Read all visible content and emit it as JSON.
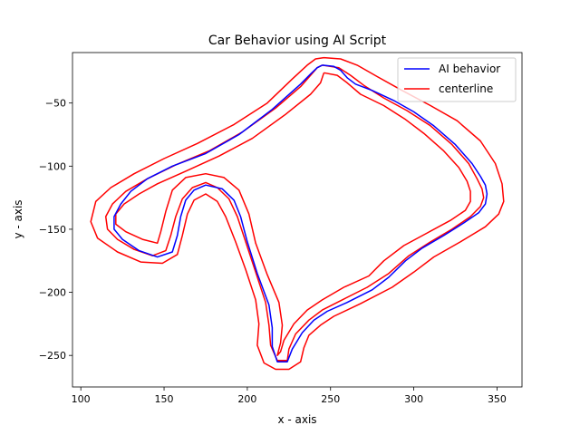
{
  "chart_data": {
    "type": "line",
    "title": "Car Behavior using AI Script",
    "xlabel": "x - axis",
    "ylabel": "y - axis",
    "xlim": [
      95,
      365
    ],
    "ylim": [
      -275,
      -10
    ],
    "xticks": [
      100,
      150,
      200,
      250,
      300,
      350
    ],
    "yticks": [
      -250,
      -200,
      -150,
      -100,
      -50
    ],
    "grid": false,
    "legend_position": "top-right",
    "legend": [
      {
        "label": "AI behavior",
        "color": "#0000ff"
      },
      {
        "label": "centerline",
        "color": "#ff0000"
      }
    ],
    "series": [
      {
        "name": "AI behavior",
        "color": "#0000ff",
        "points": [
          [
            245,
            -20
          ],
          [
            252,
            -21
          ],
          [
            256,
            -24
          ],
          [
            260,
            -30
          ],
          [
            265,
            -35
          ],
          [
            275,
            -40
          ],
          [
            288,
            -48
          ],
          [
            300,
            -57
          ],
          [
            312,
            -68
          ],
          [
            325,
            -83
          ],
          [
            335,
            -98
          ],
          [
            340,
            -108
          ],
          [
            343,
            -115
          ],
          [
            344,
            -122
          ],
          [
            343,
            -130
          ],
          [
            339,
            -137
          ],
          [
            330,
            -145
          ],
          [
            318,
            -155
          ],
          [
            305,
            -165
          ],
          [
            295,
            -175
          ],
          [
            285,
            -188
          ],
          [
            275,
            -198
          ],
          [
            260,
            -208
          ],
          [
            248,
            -215
          ],
          [
            240,
            -222
          ],
          [
            233,
            -232
          ],
          [
            227,
            -245
          ],
          [
            224,
            -255
          ],
          [
            218,
            -255
          ],
          [
            215,
            -243
          ],
          [
            215,
            -228
          ],
          [
            213,
            -210
          ],
          [
            206,
            -185
          ],
          [
            200,
            -160
          ],
          [
            196,
            -140
          ],
          [
            192,
            -127
          ],
          [
            185,
            -118
          ],
          [
            175,
            -115
          ],
          [
            168,
            -119
          ],
          [
            163,
            -127
          ],
          [
            160,
            -140
          ],
          [
            158,
            -155
          ],
          [
            155,
            -168
          ],
          [
            146,
            -172
          ],
          [
            135,
            -167
          ],
          [
            125,
            -158
          ],
          [
            120,
            -150
          ],
          [
            120,
            -140
          ],
          [
            124,
            -130
          ],
          [
            130,
            -120
          ],
          [
            140,
            -110
          ],
          [
            155,
            -100
          ],
          [
            175,
            -90
          ],
          [
            195,
            -75
          ],
          [
            215,
            -55
          ],
          [
            232,
            -35
          ],
          [
            238,
            -27
          ],
          [
            242,
            -22
          ],
          [
            245,
            -20
          ]
        ]
      },
      {
        "name": "centerline",
        "color": "#ff0000",
        "points": [
          [
            245,
            -20
          ],
          [
            255,
            -22
          ],
          [
            262,
            -28
          ],
          [
            270,
            -36
          ],
          [
            282,
            -46
          ],
          [
            296,
            -56
          ],
          [
            310,
            -68
          ],
          [
            323,
            -83
          ],
          [
            333,
            -98
          ],
          [
            338,
            -110
          ],
          [
            341,
            -118
          ],
          [
            342,
            -125
          ],
          [
            340,
            -132
          ],
          [
            334,
            -140
          ],
          [
            323,
            -150
          ],
          [
            310,
            -160
          ],
          [
            297,
            -171
          ],
          [
            285,
            -185
          ],
          [
            272,
            -196
          ],
          [
            257,
            -206
          ],
          [
            245,
            -214
          ],
          [
            237,
            -222
          ],
          [
            229,
            -233
          ],
          [
            225,
            -245
          ],
          [
            224,
            -254
          ],
          [
            218,
            -254
          ],
          [
            214,
            -242
          ],
          [
            213,
            -226
          ],
          [
            211,
            -208
          ],
          [
            205,
            -184
          ],
          [
            199,
            -160
          ],
          [
            194,
            -140
          ],
          [
            189,
            -126
          ],
          [
            182,
            -117
          ],
          [
            175,
            -113
          ],
          [
            167,
            -117
          ],
          [
            161,
            -126
          ],
          [
            157,
            -140
          ],
          [
            154,
            -155
          ],
          [
            151,
            -167
          ],
          [
            143,
            -171
          ],
          [
            132,
            -166
          ],
          [
            122,
            -158
          ],
          [
            116,
            -150
          ],
          [
            115,
            -140
          ],
          [
            119,
            -130
          ],
          [
            127,
            -120
          ],
          [
            140,
            -110
          ],
          [
            157,
            -99
          ],
          [
            177,
            -88
          ],
          [
            197,
            -73
          ],
          [
            217,
            -54
          ],
          [
            232,
            -37
          ],
          [
            238,
            -28
          ],
          [
            242,
            -22
          ],
          [
            245,
            -20
          ]
        ]
      },
      {
        "name": "",
        "color": "#ff0000",
        "points": [
          [
            246,
            -14
          ],
          [
            256,
            -15
          ],
          [
            266,
            -20
          ],
          [
            278,
            -29
          ],
          [
            293,
            -40
          ],
          [
            310,
            -52
          ],
          [
            326,
            -64
          ],
          [
            340,
            -80
          ],
          [
            349,
            -98
          ],
          [
            353,
            -114
          ],
          [
            354,
            -128
          ],
          [
            351,
            -138
          ],
          [
            343,
            -148
          ],
          [
            328,
            -160
          ],
          [
            312,
            -172
          ],
          [
            300,
            -184
          ],
          [
            287,
            -196
          ],
          [
            268,
            -209
          ],
          [
            252,
            -219
          ],
          [
            244,
            -226
          ],
          [
            237,
            -234
          ],
          [
            234,
            -244
          ],
          [
            232,
            -255
          ],
          [
            225,
            -261
          ],
          [
            217,
            -261
          ],
          [
            210,
            -256
          ],
          [
            206,
            -242
          ],
          [
            207,
            -225
          ],
          [
            205,
            -206
          ],
          [
            199,
            -182
          ],
          [
            193,
            -160
          ],
          [
            187,
            -140
          ],
          [
            182,
            -128
          ],
          [
            175,
            -122
          ],
          [
            168,
            -127
          ],
          [
            164,
            -138
          ],
          [
            161,
            -155
          ],
          [
            158,
            -170
          ],
          [
            149,
            -177
          ],
          [
            136,
            -176
          ],
          [
            122,
            -168
          ],
          [
            110,
            -157
          ],
          [
            106,
            -144
          ],
          [
            109,
            -128
          ],
          [
            118,
            -117
          ],
          [
            132,
            -106
          ],
          [
            150,
            -94
          ],
          [
            170,
            -82
          ],
          [
            192,
            -67
          ],
          [
            212,
            -50
          ],
          [
            227,
            -31
          ],
          [
            236,
            -20
          ],
          [
            241,
            -15
          ],
          [
            246,
            -14
          ]
        ]
      },
      {
        "name": "",
        "color": "#ff0000",
        "points": [
          [
            246,
            -26
          ],
          [
            254,
            -28
          ],
          [
            260,
            -34
          ],
          [
            268,
            -43
          ],
          [
            282,
            -52
          ],
          [
            295,
            -63
          ],
          [
            306,
            -74
          ],
          [
            318,
            -88
          ],
          [
            327,
            -101
          ],
          [
            332,
            -112
          ],
          [
            334,
            -120
          ],
          [
            334,
            -128
          ],
          [
            331,
            -135
          ],
          [
            322,
            -143
          ],
          [
            308,
            -153
          ],
          [
            294,
            -163
          ],
          [
            282,
            -175
          ],
          [
            273,
            -187
          ],
          [
            258,
            -196
          ],
          [
            245,
            -206
          ],
          [
            236,
            -214
          ],
          [
            228,
            -225
          ],
          [
            222,
            -238
          ],
          [
            220,
            -247
          ],
          [
            218,
            -250
          ],
          [
            220,
            -240
          ],
          [
            221,
            -226
          ],
          [
            219,
            -208
          ],
          [
            212,
            -186
          ],
          [
            205,
            -161
          ],
          [
            201,
            -138
          ],
          [
            195,
            -119
          ],
          [
            186,
            -109
          ],
          [
            175,
            -106
          ],
          [
            163,
            -109
          ],
          [
            155,
            -119
          ],
          [
            151,
            -136
          ],
          [
            148,
            -152
          ],
          [
            146,
            -161
          ],
          [
            137,
            -158
          ],
          [
            127,
            -152
          ],
          [
            121,
            -146
          ],
          [
            121,
            -138
          ],
          [
            126,
            -130
          ],
          [
            135,
            -122
          ],
          [
            146,
            -114
          ],
          [
            163,
            -104
          ],
          [
            183,
            -92
          ],
          [
            203,
            -78
          ],
          [
            223,
            -59
          ],
          [
            238,
            -43
          ],
          [
            244,
            -34
          ],
          [
            246,
            -26
          ]
        ]
      }
    ]
  }
}
